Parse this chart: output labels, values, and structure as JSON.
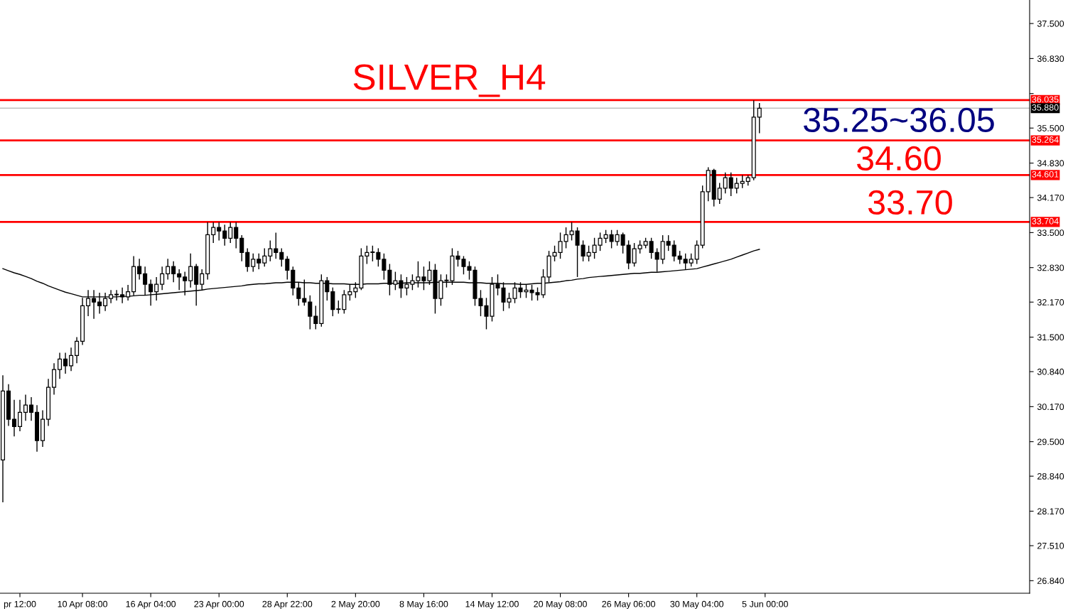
{
  "chart_data": {
    "type": "candlestick",
    "title": "SILVER_H4",
    "categories": [
      null,
      null,
      null,
      "pr 12:00",
      null,
      null,
      null,
      null,
      null,
      null,
      null,
      null,
      null,
      null,
      "10 Apr 08:00",
      null,
      null,
      null,
      null,
      null,
      null,
      null,
      null,
      null,
      null,
      null,
      "16 Apr 04:00",
      null,
      null,
      null,
      null,
      null,
      null,
      null,
      null,
      null,
      null,
      null,
      "23 Apr 00:00",
      null,
      null,
      null,
      null,
      null,
      null,
      null,
      null,
      null,
      null,
      null,
      "28 Apr 22:00",
      null,
      null,
      null,
      null,
      null,
      null,
      null,
      null,
      null,
      null,
      null,
      "2 May 20:00",
      null,
      null,
      null,
      null,
      null,
      null,
      null,
      null,
      null,
      null,
      null,
      "8 May 16:00",
      null,
      null,
      null,
      null,
      null,
      null,
      null,
      null,
      null,
      null,
      null,
      "14 May 12:00",
      null,
      null,
      null,
      null,
      null,
      null,
      null,
      null,
      null,
      null,
      null,
      "20 May 08:00",
      null,
      null,
      null,
      null,
      null,
      null,
      null,
      null,
      null,
      null,
      null,
      "26 May 06:00",
      null,
      null,
      null,
      null,
      null,
      null,
      null,
      null,
      null,
      null,
      null,
      "30 May 04:00",
      null,
      null,
      null,
      null,
      null,
      null,
      null,
      null,
      null,
      null,
      null,
      "5 Jun 00:00",
      null,
      null,
      null,
      null,
      null,
      null,
      null,
      null,
      null,
      null,
      null,
      null,
      null,
      null,
      null,
      null,
      null,
      null,
      null,
      null,
      null,
      null,
      null,
      null,
      null,
      null,
      null,
      null,
      null,
      null,
      null,
      null,
      null,
      null,
      null,
      null,
      null,
      null,
      null,
      null,
      null,
      null,
      null,
      null,
      null,
      null
    ],
    "ohlc": [
      [
        29.15,
        30.77,
        28.34,
        30.47
      ],
      [
        30.47,
        30.6,
        29.8,
        29.93
      ],
      [
        29.93,
        30.3,
        29.6,
        29.79
      ],
      [
        29.79,
        30.3,
        29.7,
        30.06
      ],
      [
        30.06,
        30.4,
        29.9,
        30.2
      ],
      [
        30.2,
        30.35,
        29.9,
        30.06
      ],
      [
        30.06,
        30.2,
        29.31,
        29.52
      ],
      [
        29.52,
        30.1,
        29.4,
        29.93
      ],
      [
        29.93,
        30.7,
        29.8,
        30.54
      ],
      [
        30.54,
        31.0,
        30.4,
        30.88
      ],
      [
        30.88,
        31.2,
        30.7,
        31.08
      ],
      [
        31.08,
        31.2,
        30.8,
        30.95
      ],
      [
        30.95,
        31.3,
        30.85,
        31.15
      ],
      [
        31.15,
        31.5,
        31.0,
        31.42
      ],
      [
        31.42,
        32.25,
        31.35,
        32.1
      ],
      [
        32.1,
        32.4,
        31.9,
        32.24
      ],
      [
        32.24,
        32.4,
        31.85,
        32.17
      ],
      [
        32.17,
        32.35,
        31.95,
        32.1
      ],
      [
        32.1,
        32.35,
        32.0,
        32.24
      ],
      [
        32.24,
        32.4,
        32.15,
        32.31
      ],
      [
        32.31,
        32.4,
        32.2,
        32.31
      ],
      [
        32.31,
        32.45,
        32.15,
        32.27
      ],
      [
        32.27,
        32.5,
        32.2,
        32.37
      ],
      [
        32.37,
        33.05,
        32.3,
        32.85
      ],
      [
        32.85,
        33.0,
        32.6,
        32.71
      ],
      [
        32.71,
        32.85,
        32.3,
        32.51
      ],
      [
        32.51,
        32.6,
        32.1,
        32.37
      ],
      [
        32.37,
        32.65,
        32.2,
        32.51
      ],
      [
        32.51,
        32.85,
        32.4,
        32.71
      ],
      [
        32.71,
        33.0,
        32.6,
        32.85
      ],
      [
        32.85,
        32.95,
        32.55,
        32.71
      ],
      [
        32.71,
        32.8,
        32.4,
        32.65
      ],
      [
        32.65,
        32.75,
        32.3,
        32.58
      ],
      [
        32.58,
        33.1,
        32.45,
        32.85
      ],
      [
        32.85,
        32.9,
        32.1,
        32.51
      ],
      [
        32.51,
        32.8,
        32.4,
        32.71
      ],
      [
        32.71,
        33.7,
        32.6,
        33.46
      ],
      [
        33.46,
        33.7,
        33.3,
        33.6
      ],
      [
        33.6,
        33.7,
        33.35,
        33.53
      ],
      [
        33.53,
        33.65,
        33.25,
        33.39
      ],
      [
        33.39,
        33.7,
        33.3,
        33.6
      ],
      [
        33.6,
        33.7,
        33.2,
        33.39
      ],
      [
        33.39,
        33.45,
        32.95,
        33.12
      ],
      [
        33.12,
        33.2,
        32.75,
        32.85
      ],
      [
        32.85,
        33.1,
        32.75,
        32.99
      ],
      [
        32.99,
        33.1,
        32.8,
        32.92
      ],
      [
        32.92,
        33.2,
        32.85,
        33.05
      ],
      [
        33.05,
        33.35,
        32.95,
        33.19
      ],
      [
        33.19,
        33.5,
        33.0,
        33.12
      ],
      [
        33.12,
        33.2,
        32.85,
        32.99
      ],
      [
        32.99,
        33.05,
        32.6,
        32.78
      ],
      [
        32.78,
        32.85,
        32.3,
        32.44
      ],
      [
        32.44,
        32.55,
        32.1,
        32.24
      ],
      [
        32.24,
        32.6,
        32.1,
        32.17
      ],
      [
        32.17,
        32.3,
        31.65,
        31.9
      ],
      [
        31.9,
        32.1,
        31.65,
        31.76
      ],
      [
        31.76,
        32.7,
        31.7,
        32.58
      ],
      [
        32.58,
        32.65,
        32.2,
        32.37
      ],
      [
        32.37,
        32.45,
        31.9,
        32.03
      ],
      [
        32.03,
        32.2,
        31.95,
        32.03
      ],
      [
        32.03,
        32.4,
        31.95,
        32.31
      ],
      [
        32.31,
        32.5,
        32.2,
        32.37
      ],
      [
        32.37,
        32.55,
        32.25,
        32.44
      ],
      [
        32.44,
        33.2,
        32.4,
        33.05
      ],
      [
        33.05,
        33.25,
        32.9,
        33.12
      ],
      [
        33.12,
        33.25,
        32.95,
        33.12
      ],
      [
        33.12,
        33.2,
        32.85,
        32.99
      ],
      [
        32.99,
        33.1,
        32.6,
        32.78
      ],
      [
        32.78,
        32.9,
        32.3,
        32.51
      ],
      [
        32.51,
        32.75,
        32.4,
        32.58
      ],
      [
        32.58,
        32.7,
        32.25,
        32.44
      ],
      [
        32.44,
        32.65,
        32.3,
        32.51
      ],
      [
        32.51,
        32.7,
        32.4,
        32.58
      ],
      [
        32.58,
        32.95,
        32.45,
        32.65
      ],
      [
        32.65,
        32.85,
        32.4,
        32.58
      ],
      [
        32.58,
        32.95,
        32.5,
        32.78
      ],
      [
        32.78,
        32.9,
        31.95,
        32.24
      ],
      [
        32.24,
        32.7,
        32.1,
        32.58
      ],
      [
        32.58,
        32.7,
        32.45,
        32.58
      ],
      [
        32.58,
        33.2,
        32.5,
        33.05
      ],
      [
        33.05,
        33.15,
        32.85,
        32.99
      ],
      [
        32.99,
        33.05,
        32.7,
        32.85
      ],
      [
        32.85,
        32.95,
        32.6,
        32.78
      ],
      [
        32.78,
        32.85,
        32.1,
        32.24
      ],
      [
        32.24,
        32.4,
        31.9,
        32.1
      ],
      [
        32.1,
        32.25,
        31.65,
        31.9
      ],
      [
        31.9,
        32.65,
        31.8,
        32.51
      ],
      [
        32.51,
        32.7,
        32.3,
        32.44
      ],
      [
        32.44,
        32.55,
        32.0,
        32.17
      ],
      [
        32.17,
        32.35,
        32.05,
        32.24
      ],
      [
        32.24,
        32.55,
        32.15,
        32.44
      ],
      [
        32.44,
        32.55,
        32.25,
        32.37
      ],
      [
        32.37,
        32.5,
        32.25,
        32.4
      ],
      [
        32.4,
        32.5,
        32.2,
        32.35
      ],
      [
        32.35,
        32.45,
        32.2,
        32.31
      ],
      [
        32.31,
        32.8,
        32.25,
        32.65
      ],
      [
        32.65,
        33.15,
        32.55,
        33.05
      ],
      [
        33.05,
        33.25,
        32.95,
        33.12
      ],
      [
        33.12,
        33.5,
        33.0,
        33.33
      ],
      [
        33.33,
        33.6,
        33.2,
        33.46
      ],
      [
        33.46,
        33.7,
        33.35,
        33.53
      ],
      [
        33.53,
        33.6,
        32.65,
        33.26
      ],
      [
        33.26,
        33.35,
        32.95,
        33.05
      ],
      [
        33.05,
        33.25,
        32.95,
        33.12
      ],
      [
        33.12,
        33.4,
        33.0,
        33.26
      ],
      [
        33.26,
        33.5,
        33.15,
        33.39
      ],
      [
        33.39,
        33.55,
        33.3,
        33.46
      ],
      [
        33.46,
        33.55,
        33.2,
        33.33
      ],
      [
        33.33,
        33.55,
        33.25,
        33.46
      ],
      [
        33.46,
        33.5,
        33.1,
        33.26
      ],
      [
        33.26,
        33.35,
        32.8,
        32.92
      ],
      [
        32.92,
        33.3,
        32.85,
        33.19
      ],
      [
        33.19,
        33.35,
        33.1,
        33.26
      ],
      [
        33.26,
        33.4,
        33.2,
        33.33
      ],
      [
        33.33,
        33.4,
        33.0,
        33.12
      ],
      [
        33.12,
        33.2,
        32.75,
        32.99
      ],
      [
        32.99,
        33.45,
        32.9,
        33.33
      ],
      [
        33.33,
        33.45,
        33.15,
        33.26
      ],
      [
        33.26,
        33.35,
        32.95,
        33.05
      ],
      [
        33.05,
        33.15,
        32.9,
        32.99
      ],
      [
        32.99,
        33.1,
        32.8,
        32.92
      ],
      [
        32.92,
        33.1,
        32.85,
        32.99
      ],
      [
        32.99,
        33.35,
        32.9,
        33.26
      ],
      [
        33.26,
        34.4,
        33.2,
        34.28
      ],
      [
        34.28,
        34.75,
        34.1,
        34.69
      ],
      [
        34.69,
        34.72,
        34.0,
        34.14
      ],
      [
        34.14,
        34.45,
        34.05,
        34.35
      ],
      [
        34.35,
        34.65,
        34.25,
        34.55
      ],
      [
        34.55,
        34.65,
        34.2,
        34.35
      ],
      [
        34.35,
        34.55,
        34.25,
        34.44
      ],
      [
        34.44,
        34.6,
        34.35,
        34.48
      ],
      [
        34.48,
        34.6,
        34.4,
        34.55
      ],
      [
        34.55,
        36.03,
        34.5,
        35.71
      ],
      [
        35.71,
        35.98,
        35.4,
        35.88
      ],
      null,
      null,
      null,
      null,
      null,
      null,
      null,
      null,
      null,
      null,
      null,
      null,
      null,
      null,
      null,
      null,
      null,
      null,
      null,
      null,
      null,
      null,
      null,
      null,
      null,
      null,
      null,
      null,
      null,
      null,
      null,
      null,
      null,
      null,
      null,
      null,
      null,
      null,
      null,
      null,
      null,
      null,
      null,
      null,
      null,
      null,
      null
    ],
    "series": [
      {
        "type": "line",
        "color": "#000000",
        "values": [
          32.81,
          32.77,
          32.73,
          32.7,
          32.66,
          32.62,
          32.57,
          32.53,
          32.48,
          32.44,
          32.4,
          32.36,
          32.33,
          32.3,
          32.27,
          32.27,
          32.27,
          32.27,
          32.27,
          32.27,
          32.27,
          32.28,
          32.28,
          32.29,
          32.3,
          32.3,
          32.31,
          32.32,
          32.33,
          32.34,
          32.35,
          32.36,
          32.37,
          32.38,
          32.39,
          32.4,
          32.42,
          32.43,
          32.44,
          32.45,
          32.46,
          32.47,
          32.48,
          32.5,
          32.51,
          32.52,
          32.52,
          32.53,
          32.54,
          32.54,
          32.55,
          32.55,
          32.55,
          32.54,
          32.54,
          32.53,
          32.53,
          32.53,
          32.52,
          32.52,
          32.52,
          32.51,
          32.51,
          32.51,
          32.52,
          32.52,
          32.52,
          32.53,
          32.53,
          32.53,
          32.53,
          32.54,
          32.54,
          32.54,
          32.54,
          32.54,
          32.55,
          32.55,
          32.55,
          32.55,
          32.55,
          32.55,
          32.54,
          32.54,
          32.54,
          32.53,
          32.53,
          32.53,
          32.52,
          32.52,
          32.52,
          32.51,
          32.51,
          32.52,
          32.53,
          32.53,
          32.54,
          32.55,
          32.56,
          32.58,
          32.59,
          32.61,
          32.62,
          32.64,
          32.65,
          32.66,
          32.67,
          32.68,
          32.69,
          32.7,
          32.71,
          32.72,
          32.72,
          32.73,
          32.74,
          32.74,
          32.75,
          32.76,
          32.77,
          32.78,
          32.79,
          32.8,
          32.81,
          32.84,
          32.87,
          32.9,
          32.93,
          32.96,
          32.99,
          33.03,
          33.07,
          33.11,
          33.15,
          33.18,
          null,
          null,
          null,
          null,
          null,
          null,
          null,
          null,
          null,
          null,
          null,
          null,
          null,
          null,
          null,
          null,
          null,
          null,
          null,
          null,
          null,
          null,
          null,
          null,
          null,
          null,
          null,
          null,
          null,
          null,
          null,
          null,
          null,
          null,
          null,
          null,
          null,
          null,
          null,
          null,
          null,
          null,
          null,
          null,
          null,
          null,
          null
        ]
      }
    ],
    "ylim": [
      26.6,
      37.95
    ],
    "yticks": [
      {
        "value": 37.5,
        "label": "37.500"
      },
      {
        "value": 36.83,
        "label": "36.830"
      },
      {
        "value": 36.16,
        "label": null
      },
      {
        "value": 35.5,
        "label": "35.500"
      },
      {
        "value": 34.83,
        "label": "34.830"
      },
      {
        "value": 34.17,
        "label": "34.170"
      },
      {
        "value": 33.5,
        "label": "33.500"
      },
      {
        "value": 32.83,
        "label": "32.830"
      },
      {
        "value": 32.17,
        "label": "32.170"
      },
      {
        "value": 31.5,
        "label": "31.500"
      },
      {
        "value": 30.84,
        "label": "30.840"
      },
      {
        "value": 30.17,
        "label": "30.170"
      },
      {
        "value": 29.5,
        "label": "29.500"
      },
      {
        "value": 28.84,
        "label": "28.840"
      },
      {
        "value": 28.17,
        "label": "28.170"
      },
      {
        "value": 27.51,
        "label": "27.510"
      },
      {
        "value": 26.84,
        "label": "26.840"
      }
    ],
    "ref_lines": [
      {
        "axis": "y",
        "value": 36.035,
        "label": "36.035",
        "color": "#ff0000",
        "line_style": "solid"
      },
      {
        "axis": "y",
        "value": 35.88,
        "label": "35.880",
        "color": "#c0c0c0",
        "line_style": "solid"
      },
      {
        "axis": "y",
        "value": 35.264,
        "label": "35.264",
        "color": "#ff0000",
        "line_style": "solid"
      },
      {
        "axis": "y",
        "value": 34.601,
        "label": "34.601",
        "color": "#ff0000",
        "line_style": "solid"
      },
      {
        "axis": "y",
        "value": 33.704,
        "label": "33.704",
        "color": "#ff0000",
        "line_style": "solid"
      }
    ],
    "annotations": [
      "35.25~36.05",
      {
        "text": "34.60",
        "y": 34.6
      },
      {
        "text": "33.70",
        "y": 33.7
      }
    ],
    "grid": false
  }
}
